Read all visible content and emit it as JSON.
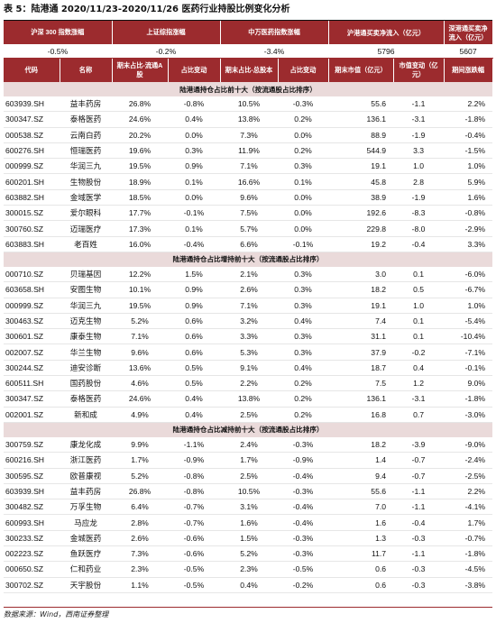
{
  "title": "表 5：陆港通 2020/11/23-2020/11/26 医药行业持股比例变化分析",
  "summary": {
    "headers": [
      "沪深 300 指数涨幅",
      "上证综指涨幅",
      "中万医药指数涨幅",
      "沪港通买卖净流入（亿元）",
      "深港通买卖净流入（亿元）"
    ],
    "values": [
      "-0.5%",
      "-0.2%",
      "-3.4%",
      "5796",
      "5607"
    ]
  },
  "columns": [
    "代码",
    "名称",
    "期末占比-流通A股",
    "占比变动",
    "期末占比-总股本",
    "占比变动",
    "期末市值（亿元）",
    "市值变动（亿元）",
    "期间涨跌幅"
  ],
  "sections": [
    {
      "title": "陆港通持仓占比前十大（按流通股占比排序）",
      "rows": [
        [
          "603939.SH",
          "益丰药房",
          "26.8%",
          "-0.8%",
          "10.5%",
          "-0.3%",
          "55.6",
          "-1.1",
          "2.2%"
        ],
        [
          "300347.SZ",
          "泰格医药",
          "24.6%",
          "0.4%",
          "13.8%",
          "0.2%",
          "136.1",
          "-3.1",
          "-1.8%"
        ],
        [
          "000538.SZ",
          "云南白药",
          "20.2%",
          "0.0%",
          "7.3%",
          "0.0%",
          "88.9",
          "-1.9",
          "-0.4%"
        ],
        [
          "600276.SH",
          "恒瑞医药",
          "19.6%",
          "0.3%",
          "11.9%",
          "0.2%",
          "544.9",
          "3.3",
          "-1.5%"
        ],
        [
          "000999.SZ",
          "华润三九",
          "19.5%",
          "0.9%",
          "7.1%",
          "0.3%",
          "19.1",
          "1.0",
          "1.0%"
        ],
        [
          "600201.SH",
          "生物股份",
          "18.9%",
          "0.1%",
          "16.6%",
          "0.1%",
          "45.8",
          "2.8",
          "5.9%"
        ],
        [
          "603882.SH",
          "金域医学",
          "18.5%",
          "0.0%",
          "9.6%",
          "0.0%",
          "38.9",
          "-1.9",
          "1.6%"
        ],
        [
          "300015.SZ",
          "爱尔眼科",
          "17.7%",
          "-0.1%",
          "7.5%",
          "0.0%",
          "192.6",
          "-8.3",
          "-0.8%"
        ],
        [
          "300760.SZ",
          "迈瑞医疗",
          "17.3%",
          "0.1%",
          "5.7%",
          "0.0%",
          "229.8",
          "-8.0",
          "-2.9%"
        ],
        [
          "603883.SH",
          "老百姓",
          "16.0%",
          "-0.4%",
          "6.6%",
          "-0.1%",
          "19.2",
          "-0.4",
          "3.3%"
        ]
      ]
    },
    {
      "title": "陆港通持仓占比增持前十大（按流通股占比排序）",
      "rows": [
        [
          "000710.SZ",
          "贝瑞基因",
          "12.2%",
          "1.5%",
          "2.1%",
          "0.3%",
          "3.0",
          "0.1",
          "-6.0%"
        ],
        [
          "603658.SH",
          "安图生物",
          "10.1%",
          "0.9%",
          "2.6%",
          "0.3%",
          "18.2",
          "0.5",
          "-6.7%"
        ],
        [
          "000999.SZ",
          "华润三九",
          "19.5%",
          "0.9%",
          "7.1%",
          "0.3%",
          "19.1",
          "1.0",
          "1.0%"
        ],
        [
          "300463.SZ",
          "迈克生物",
          "5.2%",
          "0.6%",
          "3.2%",
          "0.4%",
          "7.4",
          "0.1",
          "-5.4%"
        ],
        [
          "300601.SZ",
          "康泰生物",
          "7.1%",
          "0.6%",
          "3.3%",
          "0.3%",
          "31.1",
          "0.1",
          "-10.4%"
        ],
        [
          "002007.SZ",
          "华兰生物",
          "9.6%",
          "0.6%",
          "5.3%",
          "0.3%",
          "37.9",
          "-0.2",
          "-7.1%"
        ],
        [
          "300244.SZ",
          "迪安诊断",
          "13.6%",
          "0.5%",
          "9.1%",
          "0.4%",
          "18.7",
          "0.4",
          "-0.1%"
        ],
        [
          "600511.SH",
          "国药股份",
          "4.6%",
          "0.5%",
          "2.2%",
          "0.2%",
          "7.5",
          "1.2",
          "9.0%"
        ],
        [
          "300347.SZ",
          "泰格医药",
          "24.6%",
          "0.4%",
          "13.8%",
          "0.2%",
          "136.1",
          "-3.1",
          "-1.8%"
        ],
        [
          "002001.SZ",
          "新和成",
          "4.9%",
          "0.4%",
          "2.5%",
          "0.2%",
          "16.8",
          "0.7",
          "-3.0%"
        ]
      ]
    },
    {
      "title": "陆港通持仓占比减持前十大（按流通股占比排序）",
      "rows": [
        [
          "300759.SZ",
          "康龙化成",
          "9.9%",
          "-1.1%",
          "2.4%",
          "-0.3%",
          "18.2",
          "-3.9",
          "-9.0%"
        ],
        [
          "600216.SH",
          "浙江医药",
          "1.7%",
          "-0.9%",
          "1.7%",
          "-0.9%",
          "1.4",
          "-0.7",
          "-2.4%"
        ],
        [
          "300595.SZ",
          "欧普康视",
          "5.2%",
          "-0.8%",
          "2.5%",
          "-0.4%",
          "9.4",
          "-0.7",
          "-2.5%"
        ],
        [
          "603939.SH",
          "益丰药房",
          "26.8%",
          "-0.8%",
          "10.5%",
          "-0.3%",
          "55.6",
          "-1.1",
          "2.2%"
        ],
        [
          "300482.SZ",
          "万孚生物",
          "6.4%",
          "-0.7%",
          "3.1%",
          "-0.4%",
          "7.0",
          "-1.1",
          "-4.1%"
        ],
        [
          "600993.SH",
          "马应龙",
          "2.8%",
          "-0.7%",
          "1.6%",
          "-0.4%",
          "1.6",
          "-0.4",
          "1.7%"
        ],
        [
          "300233.SZ",
          "金城医药",
          "2.6%",
          "-0.6%",
          "1.5%",
          "-0.3%",
          "1.3",
          "-0.3",
          "-0.7%"
        ],
        [
          "002223.SZ",
          "鱼跃医疗",
          "7.3%",
          "-0.6%",
          "5.2%",
          "-0.3%",
          "11.7",
          "-1.1",
          "-1.8%"
        ],
        [
          "000650.SZ",
          "仁和药业",
          "2.3%",
          "-0.5%",
          "2.3%",
          "-0.5%",
          "0.6",
          "-0.3",
          "-4.5%"
        ],
        [
          "300702.SZ",
          "天宇股份",
          "1.1%",
          "-0.5%",
          "0.4%",
          "-0.2%",
          "0.6",
          "-0.3",
          "-3.8%"
        ]
      ]
    }
  ],
  "source": "数据来源：Wind，西南证券整理",
  "colors": {
    "header_bg": "#9c2b2e",
    "section_bg": "#eadada"
  }
}
